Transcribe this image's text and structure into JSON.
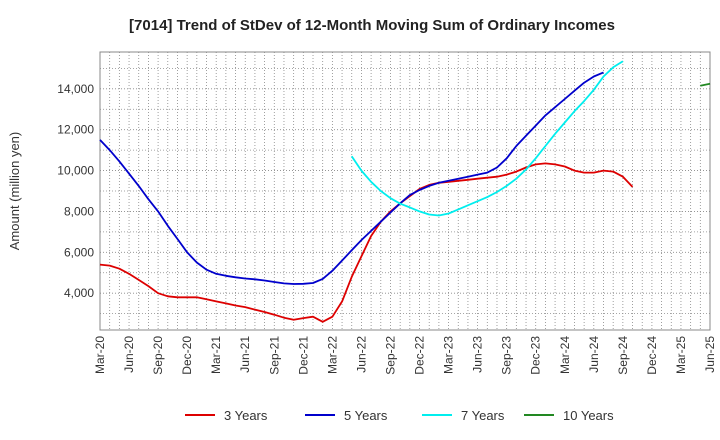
{
  "chart_data": {
    "type": "line",
    "title": "[7014]  Trend of StDev of 12-Month Moving Sum of Ordinary Incomes",
    "xlabel": "",
    "ylabel": "Amount (million yen)",
    "x_ticks": [
      "Mar-20",
      "Jun-20",
      "Sep-20",
      "Dec-20",
      "Mar-21",
      "Jun-21",
      "Sep-21",
      "Dec-21",
      "Mar-22",
      "Jun-22",
      "Sep-22",
      "Dec-22",
      "Mar-23",
      "Jun-23",
      "Sep-23",
      "Dec-23",
      "Mar-24",
      "Jun-24",
      "Sep-24",
      "Dec-24",
      "Mar-25",
      "Jun-25"
    ],
    "y_ticks": [
      4000,
      6000,
      8000,
      10000,
      12000,
      14000
    ],
    "y_tick_labels": [
      "4,000",
      "6,000",
      "8,000",
      "10,000",
      "12,000",
      "14,000"
    ],
    "ylim": [
      2200,
      15800
    ],
    "grid": true,
    "series": [
      {
        "name": "3 Years",
        "color": "#dd0000",
        "start_index": 0,
        "values": [
          5400,
          5350,
          5200,
          4950,
          4650,
          4350,
          4000,
          3850,
          3800,
          3800,
          3800,
          3700,
          3600,
          3500,
          3400,
          3320,
          3200,
          3080,
          2950,
          2800,
          2700,
          2780,
          2850,
          2600,
          2850,
          3600,
          4800,
          5800,
          6800,
          7500,
          8000,
          8400,
          8750,
          9100,
          9300,
          9400,
          9450,
          9500,
          9550,
          9600,
          9650,
          9700,
          9800,
          9950,
          10150,
          10300,
          10350,
          10300,
          10200,
          10000,
          9900,
          9900,
          10000,
          9950,
          9700,
          9200
        ]
      },
      {
        "name": "5 Years",
        "color": "#0000cc",
        "start_index": 0,
        "values": [
          11500,
          11000,
          10450,
          9850,
          9250,
          8600,
          8000,
          7300,
          6650,
          6000,
          5500,
          5150,
          4950,
          4850,
          4780,
          4720,
          4680,
          4620,
          4550,
          4480,
          4450,
          4460,
          4500,
          4700,
          5100,
          5600,
          6100,
          6600,
          7050,
          7500,
          7950,
          8400,
          8800,
          9050,
          9250,
          9400,
          9500,
          9600,
          9700,
          9800,
          9900,
          10150,
          10600,
          11200,
          11700,
          12200,
          12700,
          13100,
          13500,
          13900,
          14300,
          14600,
          14800
        ]
      },
      {
        "name": "7 Years",
        "color": "#00eeee",
        "start_index": 26,
        "values": [
          10700,
          10000,
          9450,
          9000,
          8650,
          8380,
          8200,
          8000,
          7850,
          7800,
          7900,
          8100,
          8300,
          8500,
          8700,
          8950,
          9250,
          9600,
          10050,
          10600,
          11200,
          11800,
          12350,
          12900,
          13400,
          13950,
          14600,
          15050,
          15350
        ]
      },
      {
        "name": "10 Years",
        "color": "#228822",
        "start_index": 62,
        "values": [
          14150,
          14250
        ]
      }
    ]
  }
}
